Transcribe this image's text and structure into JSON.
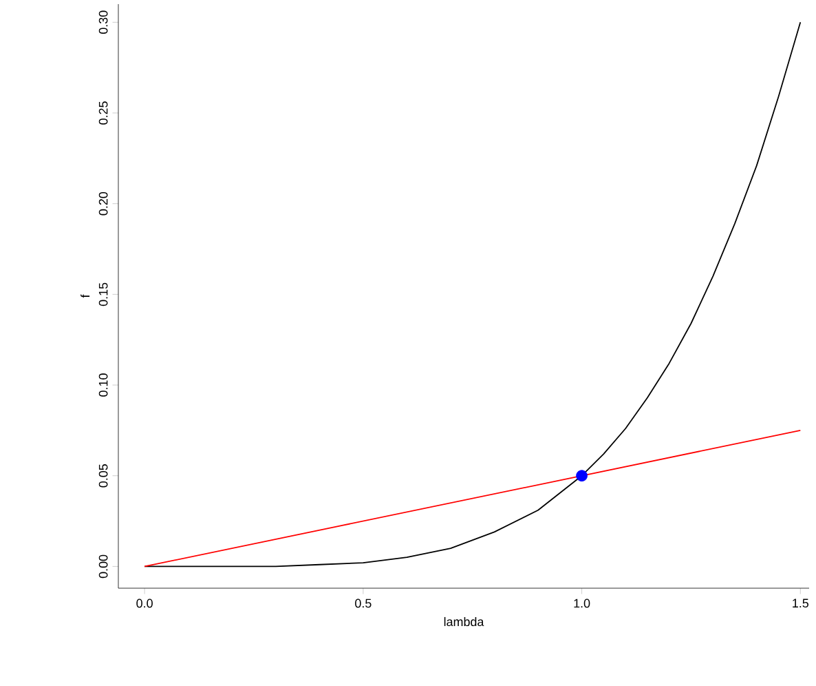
{
  "chart_data": {
    "type": "line",
    "xlabel": "lambda",
    "ylabel": "f",
    "xlim": [
      -0.06,
      1.52
    ],
    "ylim": [
      -0.012,
      0.31
    ],
    "xticks": [
      {
        "value": 0,
        "label": "0.0"
      },
      {
        "value": 0.5,
        "label": "0.5"
      },
      {
        "value": 1,
        "label": "1.0"
      },
      {
        "value": 1.5,
        "label": "1.5"
      }
    ],
    "yticks": [
      {
        "value": 0,
        "label": "0.00"
      },
      {
        "value": 0.05,
        "label": "0.05"
      },
      {
        "value": 0.1,
        "label": "0.10"
      },
      {
        "value": 0.15,
        "label": "0.15"
      },
      {
        "value": 0.2,
        "label": "0.20"
      },
      {
        "value": 0.25,
        "label": "0.25"
      },
      {
        "value": 0.3,
        "label": "0.30"
      }
    ],
    "grid": false,
    "series": [
      {
        "color": "#000000",
        "marker": "none",
        "x": [
          0,
          0.1,
          0.2,
          0.3,
          0.4,
          0.5,
          0.6,
          0.7,
          0.8,
          0.9,
          1.0,
          1.05,
          1.1,
          1.15,
          1.2,
          1.25,
          1.3,
          1.35,
          1.4,
          1.45,
          1.5
        ],
        "values": [
          0,
          0,
          0,
          0,
          0.001,
          0.002,
          0.005,
          0.01,
          0.019,
          0.031,
          0.05,
          0.062,
          0.076,
          0.093,
          0.112,
          0.134,
          0.16,
          0.189,
          0.221,
          0.259,
          0.3
        ]
      },
      {
        "color": "#ff0000",
        "marker": "none",
        "x": [
          0,
          1.5
        ],
        "values": [
          0,
          0.075
        ]
      },
      {
        "type": "scatter",
        "color": "#0000ff",
        "marker": "circle",
        "x": [
          1.0
        ],
        "values": [
          0.05
        ]
      }
    ]
  }
}
